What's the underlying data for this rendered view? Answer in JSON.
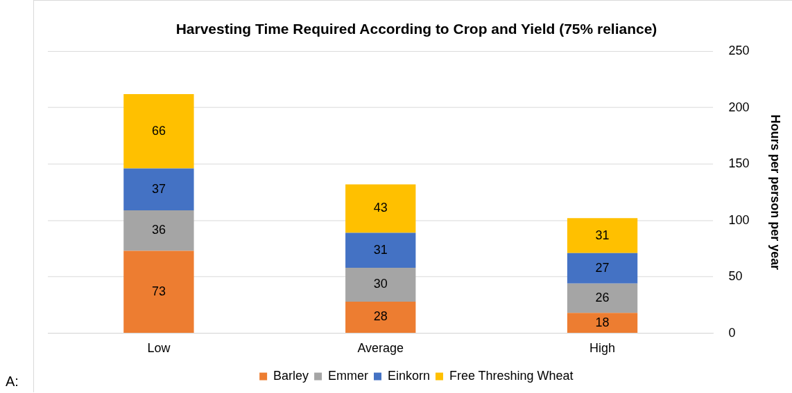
{
  "chart_data": {
    "type": "bar",
    "title": "Harvesting Time Required According to Crop and Yield (75% reliance)",
    "categories": [
      "Low",
      "Average",
      "High"
    ],
    "series": [
      {
        "name": "Barley",
        "color": "#ed7d31",
        "values": [
          73,
          28,
          18
        ]
      },
      {
        "name": "Emmer",
        "color": "#a5a5a5",
        "values": [
          36,
          30,
          26
        ]
      },
      {
        "name": "Einkorn",
        "color": "#4472c4",
        "values": [
          37,
          31,
          27
        ]
      },
      {
        "name": "Free Threshing Wheat",
        "color": "#ffc000",
        "values": [
          66,
          43,
          31
        ]
      }
    ],
    "stacked": true,
    "ylabel": "Hours per person per year",
    "ylim": [
      0,
      250
    ],
    "yticks": [
      0,
      50,
      100,
      150,
      200,
      250
    ],
    "grid": "y",
    "legend": "bottom",
    "data_labels": true,
    "annotations": [
      "A:"
    ]
  }
}
